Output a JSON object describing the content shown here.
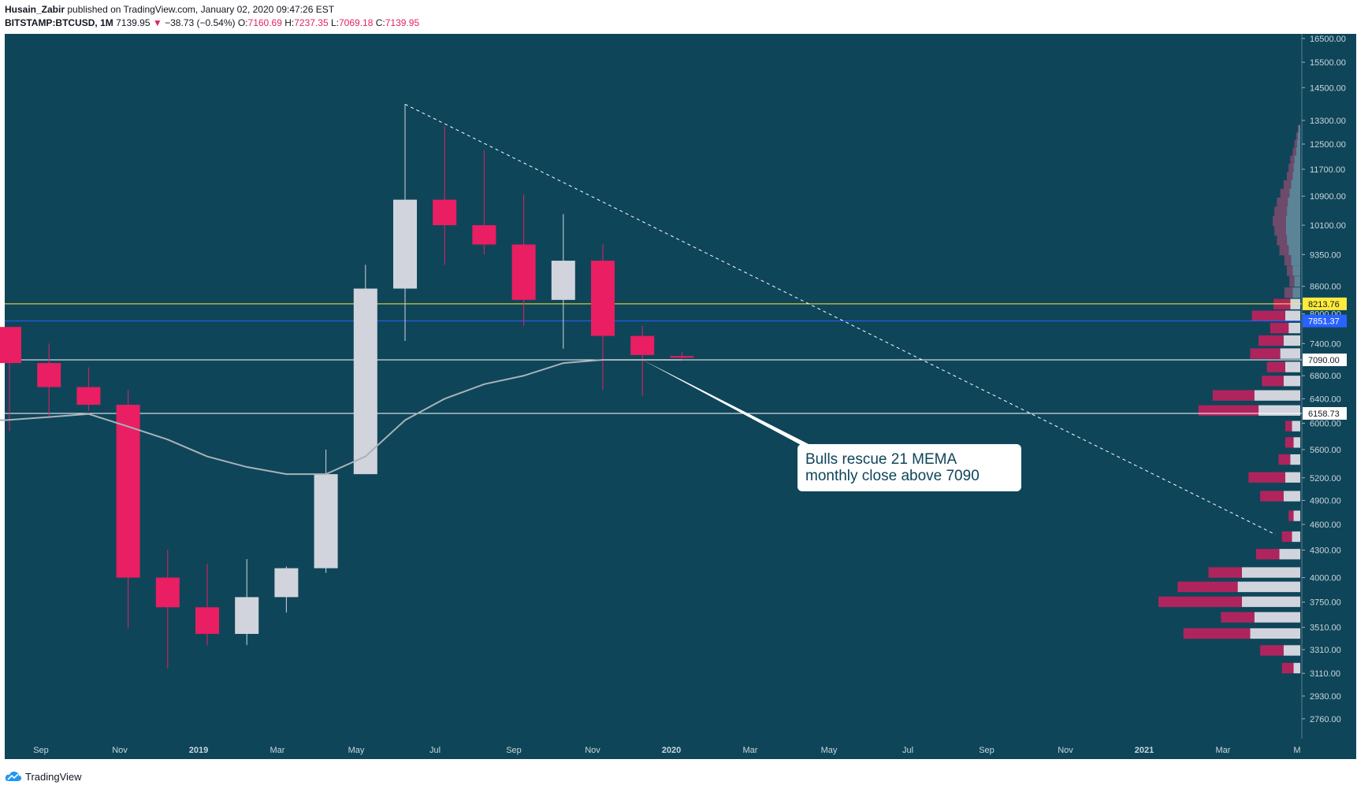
{
  "header": {
    "author": "Husain_Zabir",
    "published": "published on TradingView.com, January 02, 2020 09:47:26 EST",
    "symbol": "BITSTAMP:BTCUSD, 1M",
    "last": "7139.95",
    "change_arrow": "▼",
    "change": "−38.73 (−0.54%)",
    "o_label": "O:",
    "o": "7160.69",
    "h_label": "H:",
    "h": "7237.35",
    "l_label": "L:",
    "l": "7069.18",
    "c_label": "C:",
    "c": "7139.95"
  },
  "footer": {
    "brand": "TradingView",
    "logo_icon": "tradingview-cloud-icon"
  },
  "colors": {
    "background": "#0f4559",
    "bull": "#d1d4dc",
    "bear": "#e91e63",
    "ma": "#a8b3b8",
    "yellow_line": "#ffeb3b",
    "blue_line": "#2962ff",
    "white_line": "#ffffff"
  },
  "chart_data": {
    "type": "candlestick",
    "title": "",
    "ylim": [
      2620,
      16700
    ],
    "y_ticks": [
      "16500.00",
      "15500.00",
      "14500.00",
      "13300.00",
      "12500.00",
      "11700.00",
      "10900.00",
      "10100.00",
      "9350.00",
      "8600.00",
      "8000.00",
      "7400.00",
      "6800.00",
      "6400.00",
      "6000.00",
      "5600.00",
      "5200.00",
      "4900.00",
      "4600.00",
      "4300.00",
      "4000.00",
      "3750.00",
      "3510.00",
      "3310.00",
      "3110.00",
      "2930.00",
      "2760.00"
    ],
    "x_labels": [
      "Sep",
      "Nov",
      "2019",
      "Mar",
      "May",
      "Jul",
      "Sep",
      "Nov",
      "2020",
      "Mar",
      "May",
      "Jul",
      "Sep",
      "Nov",
      "2021",
      "Mar",
      "M"
    ],
    "candles": [
      {
        "date": "2018-08",
        "o": 7730,
        "h": 7730,
        "l": 5880,
        "c": 7030
      },
      {
        "date": "2018-09",
        "o": 7030,
        "h": 7400,
        "l": 6100,
        "c": 6600
      },
      {
        "date": "2018-10",
        "o": 6600,
        "h": 6950,
        "l": 6200,
        "c": 6300
      },
      {
        "date": "2018-11",
        "o": 6300,
        "h": 6550,
        "l": 3500,
        "c": 4000
      },
      {
        "date": "2018-12",
        "o": 4000,
        "h": 4300,
        "l": 3150,
        "c": 3700
      },
      {
        "date": "2019-01",
        "o": 3700,
        "h": 4150,
        "l": 3350,
        "c": 3450
      },
      {
        "date": "2019-02",
        "o": 3450,
        "h": 4200,
        "l": 3350,
        "c": 3800
      },
      {
        "date": "2019-03",
        "o": 3800,
        "h": 4120,
        "l": 3650,
        "c": 4100
      },
      {
        "date": "2019-04",
        "o": 4100,
        "h": 5600,
        "l": 4050,
        "c": 5250
      },
      {
        "date": "2019-05",
        "o": 5250,
        "h": 9100,
        "l": 5250,
        "c": 8550
      },
      {
        "date": "2019-06",
        "o": 8550,
        "h": 13880,
        "l": 7450,
        "c": 10800
      },
      {
        "date": "2019-07",
        "o": 10800,
        "h": 13100,
        "l": 9100,
        "c": 10100
      },
      {
        "date": "2019-08",
        "o": 10100,
        "h": 12300,
        "l": 9350,
        "c": 9600
      },
      {
        "date": "2019-09",
        "o": 9600,
        "h": 10950,
        "l": 7750,
        "c": 8300
      },
      {
        "date": "2019-10",
        "o": 8300,
        "h": 10400,
        "l": 7300,
        "c": 9200
      },
      {
        "date": "2019-11",
        "o": 9200,
        "h": 9600,
        "l": 6550,
        "c": 7550
      },
      {
        "date": "2019-12",
        "o": 7550,
        "h": 7750,
        "l": 6450,
        "c": 7180
      },
      {
        "date": "2020-01",
        "o": 7160.69,
        "h": 7237.35,
        "l": 7069.18,
        "c": 7139.95
      }
    ],
    "ma_name": "",
    "ma_values": [
      6050,
      6100,
      6150,
      5950,
      5750,
      5500,
      5350,
      5250,
      5250,
      5500,
      6050,
      6400,
      6650,
      6800,
      7030,
      7090,
      7090,
      7090
    ],
    "horizontal_lines": [
      {
        "value": 8213.76,
        "label": "8213.76",
        "color": "#ffeb3b",
        "label_bg": "#ffeb3b",
        "label_color": "#131722"
      },
      {
        "value": 7851.37,
        "label": "7851.37",
        "color": "#2962ff",
        "label_bg": "#2962ff",
        "label_color": "#ffffff"
      },
      {
        "value": 7090.0,
        "label": "7090.00",
        "color": "#ffffff",
        "label_bg": "#ffffff",
        "label_color": "#131722"
      },
      {
        "value": 6158.73,
        "label": "6158.73",
        "color": "#ffffff",
        "label_bg": "#ffffff",
        "label_color": "#131722"
      }
    ],
    "trendline": {
      "from": {
        "date": "2019-06",
        "value": 13880
      },
      "to": {
        "date": "2021-04",
        "value": 4480
      },
      "style": "dashed"
    },
    "annotation": {
      "lines": [
        "Bulls rescue 21 MEMA",
        "monthly close above 7090"
      ],
      "anchor": {
        "date": "2019-12",
        "value": 7090
      }
    },
    "volume_profile": [
      {
        "price": 12950,
        "up": 2,
        "down": 1
      },
      {
        "price": 12700,
        "up": 3,
        "down": 2
      },
      {
        "price": 12450,
        "up": 4,
        "down": 3
      },
      {
        "price": 12200,
        "up": 5,
        "down": 4
      },
      {
        "price": 11950,
        "up": 7,
        "down": 5
      },
      {
        "price": 11700,
        "up": 8,
        "down": 6
      },
      {
        "price": 11450,
        "up": 9,
        "down": 7
      },
      {
        "price": 11200,
        "up": 11,
        "down": 9
      },
      {
        "price": 10950,
        "up": 13,
        "down": 11
      },
      {
        "price": 10700,
        "up": 15,
        "down": 13
      },
      {
        "price": 10450,
        "up": 16,
        "down": 15
      },
      {
        "price": 10200,
        "up": 17,
        "down": 16
      },
      {
        "price": 9950,
        "up": 17,
        "down": 14
      },
      {
        "price": 9700,
        "up": 16,
        "down": 12
      },
      {
        "price": 9450,
        "up": 14,
        "down": 11
      },
      {
        "price": 9200,
        "up": 11,
        "down": 8
      },
      {
        "price": 8950,
        "up": 9,
        "down": 7
      },
      {
        "price": 8700,
        "up": 7,
        "down": 6
      },
      {
        "price": 8450,
        "up": 9,
        "down": 10
      },
      {
        "price": 8200,
        "up": 12,
        "down": 20
      },
      {
        "price": 7950,
        "up": 18,
        "down": 40
      },
      {
        "price": 7700,
        "up": 14,
        "down": 22
      },
      {
        "price": 7450,
        "up": 20,
        "down": 30
      },
      {
        "price": 7200,
        "up": 24,
        "down": 36
      },
      {
        "price": 6950,
        "up": 18,
        "down": 22
      },
      {
        "price": 6700,
        "up": 20,
        "down": 26
      },
      {
        "price": 6450,
        "up": 55,
        "down": 50
      },
      {
        "price": 6200,
        "up": 50,
        "down": 72
      },
      {
        "price": 5950,
        "up": 10,
        "down": 8
      },
      {
        "price": 5700,
        "up": 8,
        "down": 10
      },
      {
        "price": 5450,
        "up": 12,
        "down": 14
      },
      {
        "price": 5200,
        "up": 18,
        "down": 44
      },
      {
        "price": 4950,
        "up": 20,
        "down": 28
      },
      {
        "price": 4700,
        "up": 8,
        "down": 6
      },
      {
        "price": 4450,
        "up": 10,
        "down": 12
      },
      {
        "price": 4250,
        "up": 25,
        "down": 28
      },
      {
        "price": 4050,
        "up": 70,
        "down": 40
      },
      {
        "price": 3900,
        "up": 75,
        "down": 72
      },
      {
        "price": 3750,
        "up": 70,
        "down": 100
      },
      {
        "price": 3600,
        "up": 55,
        "down": 40
      },
      {
        "price": 3450,
        "up": 60,
        "down": 80
      },
      {
        "price": 3300,
        "up": 20,
        "down": 28
      },
      {
        "price": 3150,
        "up": 8,
        "down": 14
      }
    ]
  }
}
